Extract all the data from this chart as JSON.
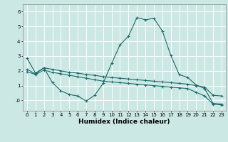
{
  "xlabel": "Humidex (Indice chaleur)",
  "xlim": [
    -0.5,
    23.5
  ],
  "ylim": [
    -0.7,
    6.5
  ],
  "yticks": [
    0,
    1,
    2,
    3,
    4,
    5,
    6
  ],
  "ytick_labels": [
    "-0",
    "1",
    "2",
    "3",
    "4",
    "5",
    "6"
  ],
  "xticks": [
    0,
    1,
    2,
    3,
    4,
    5,
    6,
    7,
    8,
    9,
    10,
    11,
    12,
    13,
    14,
    15,
    16,
    17,
    18,
    19,
    20,
    21,
    22,
    23
  ],
  "background_color": "#cce8e4",
  "grid_color": "#ffffff",
  "line_color": "#1a6b6b",
  "line1_y": [
    2.85,
    1.85,
    2.2,
    1.2,
    0.65,
    0.4,
    0.3,
    -0.05,
    0.35,
    1.15,
    2.5,
    3.75,
    4.35,
    5.6,
    5.45,
    5.55,
    4.7,
    3.05,
    1.75,
    1.55,
    1.05,
    0.8,
    -0.2,
    -0.25
  ],
  "line2_y": [
    2.1,
    1.8,
    2.2,
    2.1,
    2.0,
    1.9,
    1.85,
    1.75,
    1.7,
    1.6,
    1.55,
    1.5,
    1.45,
    1.4,
    1.35,
    1.3,
    1.25,
    1.2,
    1.15,
    1.1,
    1.0,
    0.9,
    0.35,
    0.3
  ],
  "line3_y": [
    1.95,
    1.75,
    2.05,
    1.9,
    1.8,
    1.7,
    1.6,
    1.5,
    1.4,
    1.3,
    1.25,
    1.2,
    1.15,
    1.1,
    1.05,
    1.0,
    0.95,
    0.9,
    0.85,
    0.8,
    0.55,
    0.3,
    -0.25,
    -0.3
  ],
  "tick_fontsize": 5,
  "xlabel_fontsize": 6.5
}
